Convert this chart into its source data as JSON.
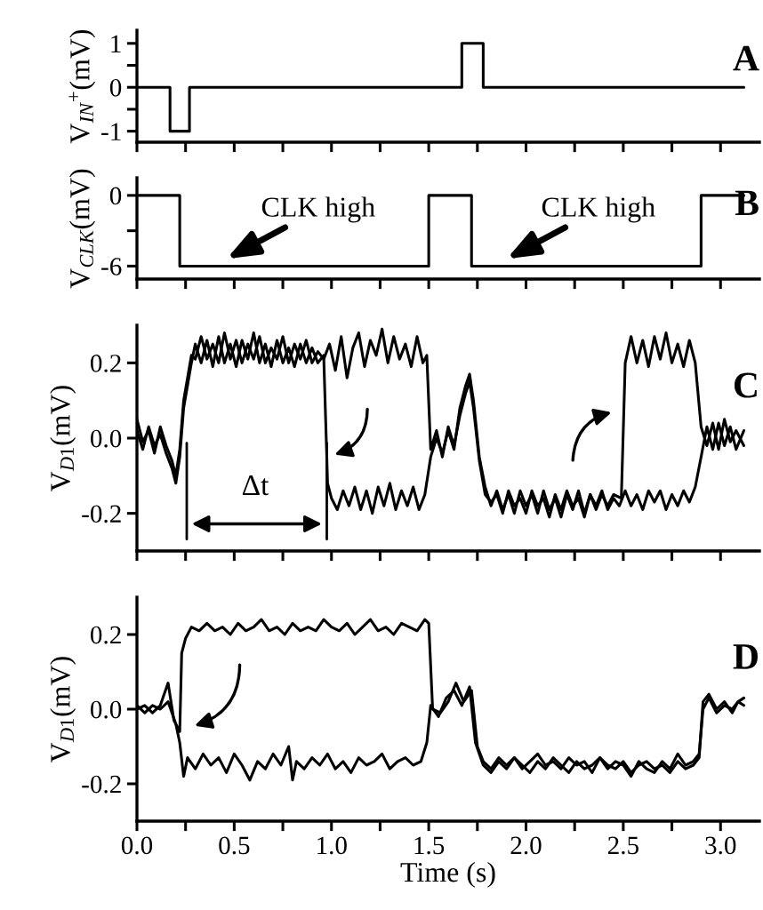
{
  "chart_data": [
    {
      "type": "line",
      "ylabel": "V$_{IN}$$^{+}$(mV)",
      "annotations": [
        "A"
      ],
      "xlim": [
        0,
        3.2
      ],
      "ylim": [
        -1.25,
        1.3
      ],
      "xticks": [
        0,
        {
          "value": 0.25,
          "label": null
        },
        {
          "value": 0.5,
          "label": null
        },
        {
          "value": 0.75,
          "label": null
        },
        {
          "value": 1.0,
          "label": null
        },
        {
          "value": 1.25,
          "label": null
        },
        {
          "value": 1.5,
          "label": null
        },
        {
          "value": 1.75,
          "label": null
        },
        {
          "value": 2.0,
          "label": null
        },
        {
          "value": 2.25,
          "label": null
        },
        {
          "value": 2.5,
          "label": null
        },
        {
          "value": 2.75,
          "label": null
        },
        {
          "value": 3.0,
          "label": null
        }
      ],
      "yticks": [
        -1,
        {
          "value": -0.5,
          "label": null
        },
        0,
        {
          "value": 0.5,
          "label": null
        },
        1
      ],
      "tick_labels": "y",
      "grid": false,
      "legend": false,
      "series": [
        {
          "color": "#000000",
          "x": [
            0,
            0.17,
            0.17,
            0.27,
            0.27,
            1.67,
            1.67,
            1.78,
            1.78,
            3.12
          ],
          "values": [
            0,
            0,
            -1,
            -1,
            0,
            0,
            1,
            1,
            0,
            0
          ]
        }
      ]
    },
    {
      "type": "line",
      "ylabel": "V$_{CLK}$(mV)",
      "annotations": [
        {
          "text": "CLK high",
          "x": 0.46,
          "y": -5.4
        },
        {
          "text": "CLK high",
          "x": 1.9,
          "y": -5.4
        },
        "B"
      ],
      "xlim": [
        0,
        3.2
      ],
      "ylim": [
        -7.1,
        1.5
      ],
      "xticks": [
        0,
        {
          "value": 0.25,
          "label": null
        },
        {
          "value": 0.5,
          "label": null
        },
        {
          "value": 0.75,
          "label": null
        },
        {
          "value": 1.0,
          "label": null
        },
        {
          "value": 1.25,
          "label": null
        },
        {
          "value": 1.5,
          "label": null
        },
        {
          "value": 1.75,
          "label": null
        },
        {
          "value": 2.0,
          "label": null
        },
        {
          "value": 2.25,
          "label": null
        },
        {
          "value": 2.5,
          "label": null
        },
        {
          "value": 2.75,
          "label": null
        },
        {
          "value": 3.0,
          "label": null
        }
      ],
      "yticks": [
        -6,
        {
          "value": -3,
          "label": null
        },
        0
      ],
      "tick_labels": "y",
      "grid": false,
      "legend": false,
      "series": [
        {
          "color": "#000000",
          "x": [
            0,
            0.22,
            0.22,
            1.5,
            1.5,
            1.72,
            1.72,
            2.9,
            2.9,
            3.12
          ],
          "values": [
            0,
            0,
            -6,
            -6,
            0,
            0,
            -6,
            -6,
            0,
            0
          ]
        }
      ]
    },
    {
      "type": "line",
      "ylabel": "V$_{D1}$(mV)",
      "annotations": [
        "Δt",
        "C"
      ],
      "xlim": [
        0,
        3.2
      ],
      "ylim": [
        -0.3,
        0.3
      ],
      "xticks": [
        0,
        {
          "value": 0.25,
          "label": null
        },
        {
          "value": 0.5,
          "label": null
        },
        {
          "value": 0.75,
          "label": null
        },
        {
          "value": 1.0,
          "label": null
        },
        {
          "value": 1.25,
          "label": null
        },
        {
          "value": 1.5,
          "label": null
        },
        {
          "value": 1.75,
          "label": null
        },
        {
          "value": 2.0,
          "label": null
        },
        {
          "value": 2.25,
          "label": null
        },
        {
          "value": 2.5,
          "label": null
        },
        {
          "value": 2.75,
          "label": null
        },
        {
          "value": 3.0,
          "label": null
        }
      ],
      "yticks": [
        -0.2,
        {
          "value": 0.0,
          "label": "0.0"
        },
        0.2
      ],
      "tick_labels": "y",
      "grid": false,
      "legend": false,
      "series": [
        {
          "color": "#000000",
          "x": [
            0.0,
            0.03,
            0.06,
            0.09,
            0.12,
            0.15,
            0.18,
            0.2,
            0.22,
            0.24,
            0.26,
            0.28,
            0.3,
            0.33,
            0.36,
            0.39,
            0.42,
            0.45,
            0.48,
            0.51,
            0.54,
            0.57,
            0.6,
            0.63,
            0.66,
            0.69,
            0.72,
            0.75,
            0.78,
            0.81,
            0.84,
            0.87,
            0.9,
            0.93,
            0.96,
            0.98,
            1.0,
            1.03,
            1.06,
            1.09,
            1.12,
            1.15,
            1.18,
            1.21,
            1.24,
            1.27,
            1.3,
            1.33,
            1.36,
            1.39,
            1.42,
            1.45,
            1.48,
            1.51,
            1.54,
            1.57,
            1.6,
            1.63,
            1.66,
            1.69,
            1.71,
            1.73,
            1.76,
            1.79,
            1.82,
            1.85,
            1.88,
            1.91,
            1.94,
            1.97,
            2.0,
            2.03,
            2.06,
            2.09,
            2.12,
            2.15,
            2.18,
            2.21,
            2.24,
            2.27,
            2.3,
            2.33,
            2.36,
            2.39,
            2.42,
            2.45,
            2.48,
            2.51,
            2.54,
            2.57,
            2.6,
            2.63,
            2.66,
            2.69,
            2.72,
            2.75,
            2.78,
            2.81,
            2.84,
            2.87,
            2.9,
            2.93,
            2.96,
            2.99,
            3.02,
            3.05,
            3.08,
            3.12
          ],
          "values": [
            0.02,
            -0.03,
            0.03,
            -0.02,
            0.01,
            -0.04,
            -0.08,
            -0.12,
            -0.05,
            0.08,
            0.14,
            0.2,
            0.25,
            0.2,
            0.26,
            0.19,
            0.27,
            0.2,
            0.25,
            0.19,
            0.26,
            0.21,
            0.28,
            0.2,
            0.25,
            0.19,
            0.26,
            0.2,
            0.24,
            0.19,
            0.25,
            0.2,
            0.24,
            0.2,
            0.22,
            -0.12,
            -0.16,
            -0.19,
            -0.14,
            -0.18,
            -0.13,
            -0.19,
            -0.14,
            -0.2,
            -0.13,
            -0.18,
            -0.12,
            -0.19,
            -0.14,
            -0.18,
            -0.13,
            -0.19,
            -0.15,
            -0.05,
            0.0,
            -0.04,
            0.02,
            -0.03,
            0.08,
            0.14,
            0.17,
            0.1,
            -0.05,
            -0.13,
            -0.18,
            -0.14,
            -0.19,
            -0.15,
            -0.2,
            -0.14,
            -0.18,
            -0.15,
            -0.2,
            -0.14,
            -0.19,
            -0.16,
            -0.21,
            -0.15,
            -0.19,
            -0.14,
            -0.2,
            -0.15,
            -0.18,
            -0.14,
            -0.19,
            -0.16,
            -0.18,
            -0.14,
            -0.18,
            -0.15,
            -0.19,
            -0.14,
            -0.17,
            -0.14,
            -0.19,
            -0.15,
            -0.18,
            -0.14,
            -0.17,
            -0.13,
            -0.05,
            0.03,
            -0.03,
            0.04,
            -0.02,
            0.03,
            -0.03,
            0.02
          ]
        },
        {
          "color": "#000000",
          "x": [
            0.0,
            0.03,
            0.06,
            0.09,
            0.12,
            0.15,
            0.18,
            0.2,
            0.22,
            0.24,
            0.26,
            0.28,
            0.3,
            0.33,
            0.36,
            0.39,
            0.42,
            0.45,
            0.48,
            0.51,
            0.54,
            0.57,
            0.6,
            0.63,
            0.66,
            0.69,
            0.72,
            0.75,
            0.78,
            0.81,
            0.84,
            0.87,
            0.9,
            0.93,
            0.96,
            0.99,
            1.02,
            1.05,
            1.08,
            1.11,
            1.14,
            1.17,
            1.2,
            1.23,
            1.26,
            1.29,
            1.32,
            1.35,
            1.38,
            1.41,
            1.44,
            1.47,
            1.49,
            1.51,
            1.54,
            1.57,
            1.6,
            1.63,
            1.66,
            1.69,
            1.71,
            1.73,
            1.76,
            1.79,
            1.82,
            1.85,
            1.88,
            1.91,
            1.94,
            1.97,
            2.0,
            2.03,
            2.06,
            2.09,
            2.12,
            2.15,
            2.18,
            2.21,
            2.24,
            2.27,
            2.3,
            2.33,
            2.36,
            2.39,
            2.42,
            2.45,
            2.49,
            2.51,
            2.54,
            2.57,
            2.6,
            2.63,
            2.66,
            2.69,
            2.72,
            2.75,
            2.78,
            2.81,
            2.84,
            2.87,
            2.9,
            2.93,
            2.96,
            2.99,
            3.02,
            3.05,
            3.08,
            3.12
          ],
          "values": [
            0.05,
            -0.01,
            0.02,
            -0.04,
            0.03,
            -0.02,
            -0.06,
            -0.1,
            -0.03,
            0.1,
            0.16,
            0.22,
            0.21,
            0.27,
            0.21,
            0.25,
            0.2,
            0.28,
            0.21,
            0.26,
            0.2,
            0.25,
            0.21,
            0.27,
            0.2,
            0.24,
            0.21,
            0.27,
            0.2,
            0.25,
            0.21,
            0.26,
            0.2,
            0.23,
            0.21,
            0.25,
            0.18,
            0.27,
            0.16,
            0.24,
            0.28,
            0.19,
            0.26,
            0.22,
            0.29,
            0.2,
            0.27,
            0.21,
            0.25,
            0.19,
            0.27,
            0.2,
            0.22,
            -0.03,
            0.02,
            -0.05,
            0.03,
            -0.02,
            0.06,
            0.12,
            0.15,
            0.08,
            -0.06,
            -0.15,
            -0.17,
            -0.15,
            -0.2,
            -0.14,
            -0.18,
            -0.16,
            -0.2,
            -0.14,
            -0.18,
            -0.16,
            -0.21,
            -0.15,
            -0.19,
            -0.14,
            -0.18,
            -0.16,
            -0.21,
            -0.15,
            -0.19,
            -0.15,
            -0.18,
            -0.15,
            -0.16,
            0.2,
            0.27,
            0.2,
            0.26,
            0.19,
            0.27,
            0.21,
            0.28,
            0.2,
            0.25,
            0.19,
            0.26,
            0.2,
            0.03,
            -0.02,
            0.04,
            -0.03,
            0.05,
            -0.01,
            0.02,
            -0.02
          ]
        }
      ]
    },
    {
      "type": "line",
      "ylabel": "V$_{D1}$(mV)",
      "xlabel": "Time (s)",
      "annotations": [
        "D"
      ],
      "xlim": [
        0,
        3.2
      ],
      "ylim": [
        -0.3,
        0.3
      ],
      "xticks": [
        {
          "value": 0.0,
          "label": "0.0"
        },
        {
          "value": 0.25,
          "label": null
        },
        0.5,
        {
          "value": 0.75,
          "label": null
        },
        {
          "value": 1.0,
          "label": "1.0"
        },
        {
          "value": 1.25,
          "label": null
        },
        1.5,
        {
          "value": 1.75,
          "label": null
        },
        {
          "value": 2.0,
          "label": "2.0"
        },
        {
          "value": 2.25,
          "label": null
        },
        2.5,
        {
          "value": 2.75,
          "label": null
        },
        {
          "value": 3.0,
          "label": "3.0"
        }
      ],
      "yticks": [
        -0.2,
        {
          "value": 0.0,
          "label": "0.0"
        },
        0.2
      ],
      "grid": false,
      "legend": false,
      "series": [
        {
          "color": "#000000",
          "x": [
            0.0,
            0.04,
            0.08,
            0.12,
            0.16,
            0.19,
            0.22,
            0.23,
            0.25,
            0.28,
            0.32,
            0.36,
            0.4,
            0.44,
            0.48,
            0.52,
            0.56,
            0.6,
            0.64,
            0.68,
            0.72,
            0.76,
            0.8,
            0.84,
            0.88,
            0.92,
            0.96,
            1.0,
            1.04,
            1.08,
            1.12,
            1.16,
            1.2,
            1.24,
            1.28,
            1.32,
            1.36,
            1.4,
            1.44,
            1.48,
            1.5,
            1.52,
            1.56,
            1.6,
            1.64,
            1.68,
            1.72,
            1.75,
            1.78,
            1.82,
            1.86,
            1.9,
            1.94,
            1.98,
            2.02,
            2.06,
            2.1,
            2.14,
            2.18,
            2.22,
            2.26,
            2.3,
            2.34,
            2.38,
            2.42,
            2.46,
            2.5,
            2.54,
            2.58,
            2.62,
            2.66,
            2.7,
            2.74,
            2.78,
            2.82,
            2.86,
            2.89,
            2.91,
            2.94,
            2.98,
            3.02,
            3.06,
            3.09,
            3.12
          ],
          "values": [
            0.0,
            0.01,
            -0.01,
            0.01,
            0.07,
            -0.03,
            -0.06,
            0.15,
            0.19,
            0.22,
            0.21,
            0.23,
            0.21,
            0.22,
            0.2,
            0.23,
            0.21,
            0.22,
            0.24,
            0.21,
            0.22,
            0.2,
            0.23,
            0.21,
            0.22,
            0.21,
            0.24,
            0.22,
            0.21,
            0.23,
            0.2,
            0.22,
            0.24,
            0.21,
            0.22,
            0.2,
            0.23,
            0.22,
            0.21,
            0.24,
            0.23,
            0.0,
            -0.01,
            0.02,
            0.07,
            0.02,
            0.05,
            -0.1,
            -0.14,
            -0.16,
            -0.13,
            -0.15,
            -0.13,
            -0.16,
            -0.14,
            -0.12,
            -0.15,
            -0.14,
            -0.16,
            -0.13,
            -0.15,
            -0.14,
            -0.17,
            -0.13,
            -0.15,
            -0.16,
            -0.14,
            -0.17,
            -0.15,
            -0.14,
            -0.16,
            -0.15,
            -0.17,
            -0.14,
            -0.16,
            -0.15,
            -0.13,
            0.02,
            0.04,
            0.0,
            0.02,
            -0.01,
            0.02,
            0.03
          ]
        },
        {
          "color": "#000000",
          "x": [
            0.0,
            0.04,
            0.08,
            0.12,
            0.16,
            0.2,
            0.22,
            0.24,
            0.26,
            0.3,
            0.34,
            0.38,
            0.42,
            0.46,
            0.5,
            0.54,
            0.58,
            0.62,
            0.66,
            0.7,
            0.74,
            0.78,
            0.8,
            0.82,
            0.86,
            0.9,
            0.94,
            0.98,
            1.02,
            1.06,
            1.1,
            1.14,
            1.18,
            1.22,
            1.26,
            1.3,
            1.34,
            1.38,
            1.42,
            1.46,
            1.49,
            1.51,
            1.55,
            1.59,
            1.63,
            1.67,
            1.71,
            1.74,
            1.78,
            1.82,
            1.86,
            1.9,
            1.94,
            1.98,
            2.02,
            2.06,
            2.1,
            2.14,
            2.18,
            2.22,
            2.26,
            2.3,
            2.34,
            2.38,
            2.42,
            2.46,
            2.5,
            2.54,
            2.58,
            2.62,
            2.66,
            2.7,
            2.74,
            2.78,
            2.82,
            2.86,
            2.89,
            2.91,
            2.94,
            2.98,
            3.02,
            3.06,
            3.09,
            3.12
          ],
          "values": [
            0.01,
            -0.01,
            0.01,
            0.0,
            0.02,
            -0.04,
            -0.09,
            -0.18,
            -0.13,
            -0.16,
            -0.12,
            -0.15,
            -0.13,
            -0.17,
            -0.12,
            -0.15,
            -0.19,
            -0.14,
            -0.16,
            -0.12,
            -0.15,
            -0.1,
            -0.19,
            -0.14,
            -0.16,
            -0.13,
            -0.15,
            -0.12,
            -0.16,
            -0.14,
            -0.17,
            -0.13,
            -0.15,
            -0.14,
            -0.12,
            -0.16,
            -0.14,
            -0.13,
            -0.15,
            -0.14,
            -0.09,
            0.01,
            -0.02,
            0.03,
            0.05,
            0.01,
            0.06,
            -0.09,
            -0.15,
            -0.17,
            -0.14,
            -0.16,
            -0.13,
            -0.15,
            -0.17,
            -0.14,
            -0.16,
            -0.13,
            -0.15,
            -0.17,
            -0.14,
            -0.16,
            -0.15,
            -0.13,
            -0.16,
            -0.14,
            -0.15,
            -0.18,
            -0.14,
            -0.16,
            -0.17,
            -0.14,
            -0.16,
            -0.12,
            -0.15,
            -0.14,
            -0.12,
            0.0,
            0.03,
            -0.01,
            0.01,
            0.0,
            0.02,
            0.01
          ]
        }
      ]
    }
  ]
}
